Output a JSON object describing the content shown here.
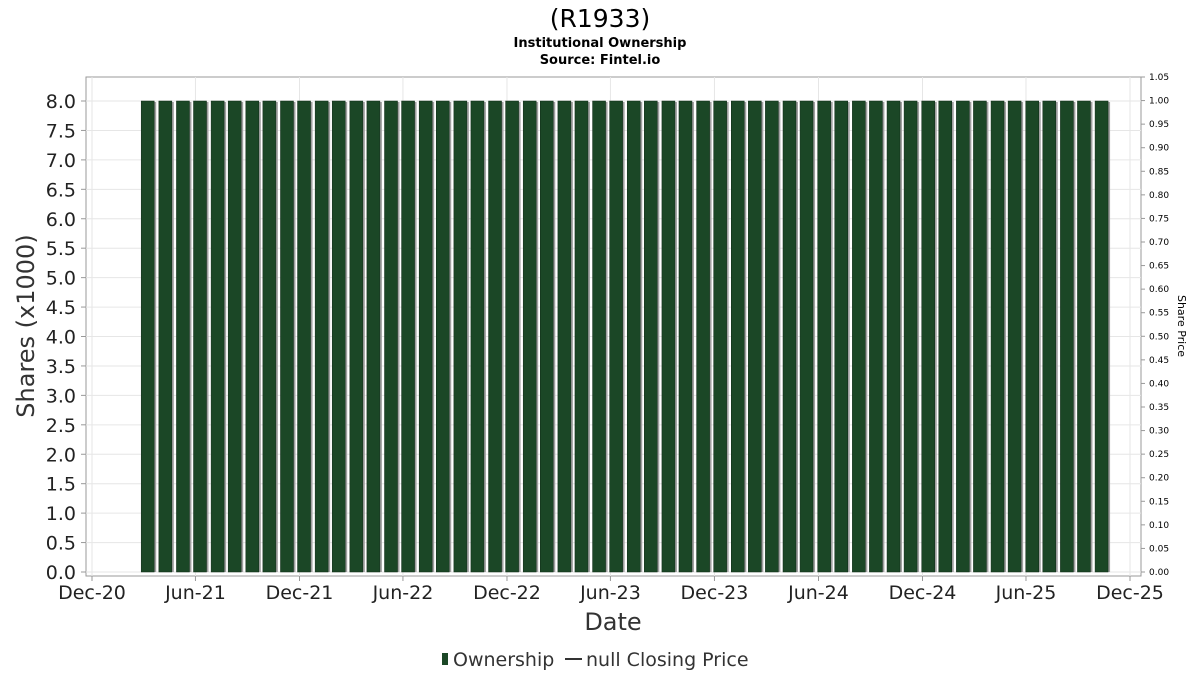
{
  "chart_data": {
    "type": "bar",
    "title": "(R1933)",
    "subtitle_1": "Institutional Ownership",
    "subtitle_2": "Source: Fintel.io",
    "xlabel": "Date",
    "ylabel": "Shares (x1000)",
    "ylabel_right": "Share Price",
    "x_domain": [
      "2020-12-01",
      "2025-12-01"
    ],
    "x_ticks": [
      {
        "date": "2020-12-01",
        "label": "Dec-20"
      },
      {
        "date": "2021-06-01",
        "label": "Jun-21"
      },
      {
        "date": "2021-12-01",
        "label": "Dec-21"
      },
      {
        "date": "2022-06-01",
        "label": "Jun-22"
      },
      {
        "date": "2022-12-01",
        "label": "Dec-22"
      },
      {
        "date": "2023-06-01",
        "label": "Jun-23"
      },
      {
        "date": "2023-12-01",
        "label": "Dec-23"
      },
      {
        "date": "2024-06-01",
        "label": "Jun-24"
      },
      {
        "date": "2024-12-01",
        "label": "Dec-24"
      },
      {
        "date": "2025-06-01",
        "label": "Jun-25"
      },
      {
        "date": "2025-12-01",
        "label": "Dec-25"
      }
    ],
    "ylim": [
      0,
      8.0
    ],
    "y_ticks": [
      "0.0",
      "0.5",
      "1.0",
      "1.5",
      "2.0",
      "2.5",
      "3.0",
      "3.5",
      "4.0",
      "4.5",
      "5.0",
      "5.5",
      "6.0",
      "6.5",
      "7.0",
      "7.5",
      "8.0"
    ],
    "ylim_right": [
      0,
      1.05
    ],
    "y_ticks_right": [
      "0.00",
      "0.05",
      "0.10",
      "0.15",
      "0.20",
      "0.25",
      "0.30",
      "0.35",
      "0.40",
      "0.45",
      "0.50",
      "0.55",
      "0.60",
      "0.65",
      "0.70",
      "0.75",
      "0.80",
      "0.85",
      "0.90",
      "0.95",
      "1.00",
      "1.05"
    ],
    "grid": true,
    "legend_position": "bottom",
    "series": [
      {
        "name": "Ownership",
        "color": "#1b4726",
        "points": [
          {
            "date": "2021-03-09",
            "value": 8.0
          },
          {
            "date": "2021-04-09",
            "value": 8.0
          },
          {
            "date": "2021-05-10",
            "value": 8.0
          },
          {
            "date": "2021-06-09",
            "value": 8.0
          },
          {
            "date": "2021-07-10",
            "value": 8.0
          },
          {
            "date": "2021-08-09",
            "value": 8.0
          },
          {
            "date": "2021-09-09",
            "value": 8.0
          },
          {
            "date": "2021-10-09",
            "value": 8.0
          },
          {
            "date": "2021-11-09",
            "value": 8.0
          },
          {
            "date": "2021-12-09",
            "value": 8.0
          },
          {
            "date": "2022-01-09",
            "value": 8.0
          },
          {
            "date": "2022-02-08",
            "value": 8.0
          },
          {
            "date": "2022-03-11",
            "value": 8.0
          },
          {
            "date": "2022-04-10",
            "value": 8.0
          },
          {
            "date": "2022-05-11",
            "value": 8.0
          },
          {
            "date": "2022-06-10",
            "value": 8.0
          },
          {
            "date": "2022-07-11",
            "value": 8.0
          },
          {
            "date": "2022-08-10",
            "value": 8.0
          },
          {
            "date": "2022-09-10",
            "value": 8.0
          },
          {
            "date": "2022-10-10",
            "value": 8.0
          },
          {
            "date": "2022-11-10",
            "value": 8.0
          },
          {
            "date": "2022-12-10",
            "value": 8.0
          },
          {
            "date": "2023-01-10",
            "value": 8.0
          },
          {
            "date": "2023-02-09",
            "value": 8.0
          },
          {
            "date": "2023-03-12",
            "value": 8.0
          },
          {
            "date": "2023-04-11",
            "value": 8.0
          },
          {
            "date": "2023-05-12",
            "value": 8.0
          },
          {
            "date": "2023-06-11",
            "value": 8.0
          },
          {
            "date": "2023-07-12",
            "value": 8.0
          },
          {
            "date": "2023-08-11",
            "value": 8.0
          },
          {
            "date": "2023-09-11",
            "value": 8.0
          },
          {
            "date": "2023-10-11",
            "value": 8.0
          },
          {
            "date": "2023-11-11",
            "value": 8.0
          },
          {
            "date": "2023-12-11",
            "value": 8.0
          },
          {
            "date": "2024-01-11",
            "value": 8.0
          },
          {
            "date": "2024-02-10",
            "value": 8.0
          },
          {
            "date": "2024-03-11",
            "value": 8.0
          },
          {
            "date": "2024-04-11",
            "value": 8.0
          },
          {
            "date": "2024-05-11",
            "value": 8.0
          },
          {
            "date": "2024-06-11",
            "value": 8.0
          },
          {
            "date": "2024-07-11",
            "value": 8.0
          },
          {
            "date": "2024-08-11",
            "value": 8.0
          },
          {
            "date": "2024-09-10",
            "value": 8.0
          },
          {
            "date": "2024-10-11",
            "value": 8.0
          },
          {
            "date": "2024-11-10",
            "value": 8.0
          },
          {
            "date": "2024-12-11",
            "value": 8.0
          },
          {
            "date": "2025-01-10",
            "value": 8.0
          },
          {
            "date": "2025-02-10",
            "value": 8.0
          },
          {
            "date": "2025-03-12",
            "value": 8.0
          },
          {
            "date": "2025-04-12",
            "value": 8.0
          },
          {
            "date": "2025-05-12",
            "value": 8.0
          },
          {
            "date": "2025-06-12",
            "value": 8.0
          },
          {
            "date": "2025-07-12",
            "value": 8.0
          },
          {
            "date": "2025-08-12",
            "value": 8.0
          },
          {
            "date": "2025-09-11",
            "value": 8.0
          },
          {
            "date": "2025-10-12",
            "value": 8.0
          }
        ]
      },
      {
        "name": "null Closing Price",
        "color": "#333333",
        "points": []
      }
    ]
  }
}
